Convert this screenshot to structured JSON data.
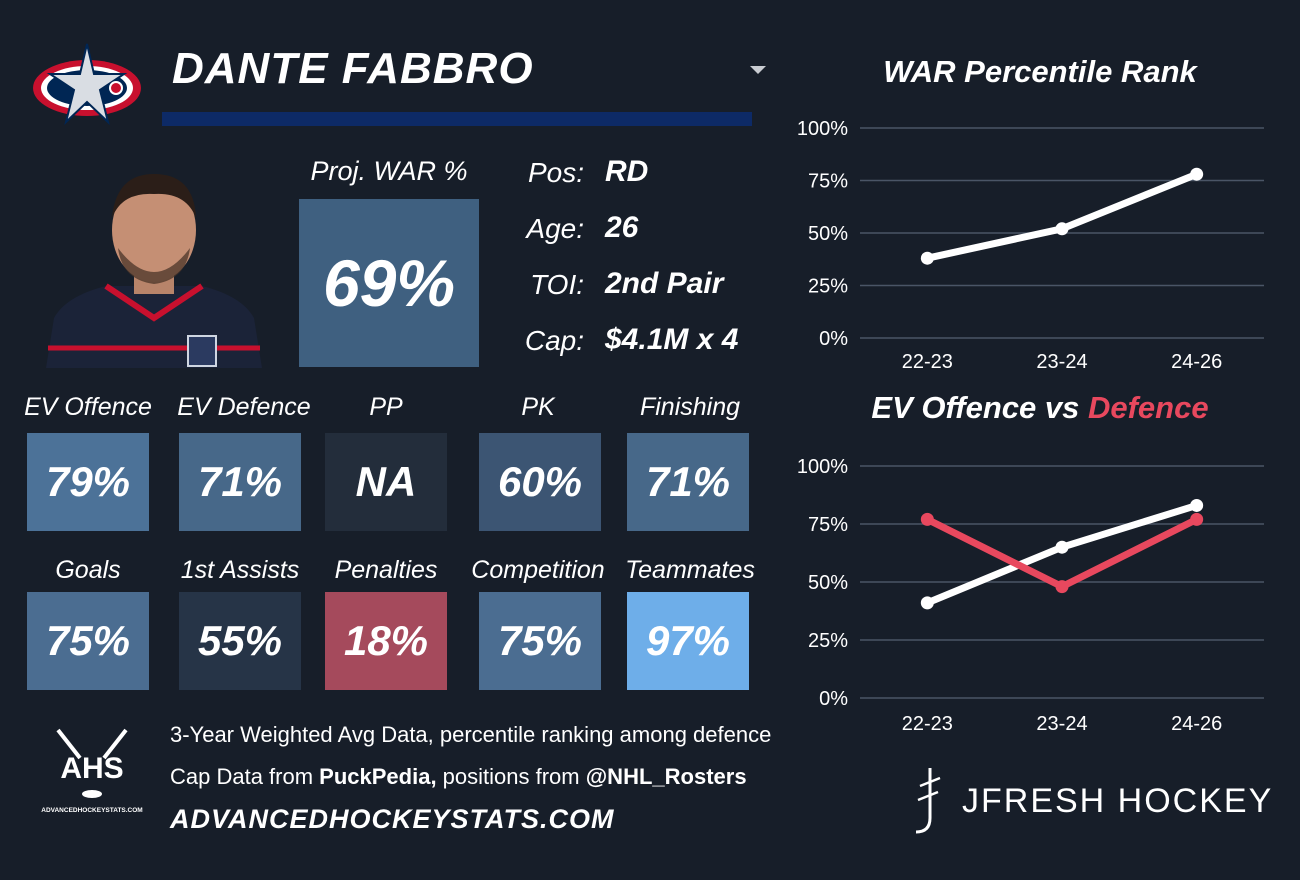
{
  "player": {
    "name": "DANTE FABBRO",
    "proj_war_label": "Proj. WAR %",
    "proj_war_value": "69%"
  },
  "info": [
    {
      "key": "Pos:",
      "value": "RD"
    },
    {
      "key": "Age:",
      "value": "26"
    },
    {
      "key": "TOI:",
      "value": "2nd Pair"
    },
    {
      "key": "Cap:",
      "value": "$4.1M x 4"
    }
  ],
  "tiles": [
    {
      "label": "EV Offence",
      "value": "79%",
      "color": "#4c7298"
    },
    {
      "label": "EV Defence",
      "value": "71%",
      "color": "#476889"
    },
    {
      "label": "PP",
      "value": "NA",
      "color": "#232d3b"
    },
    {
      "label": "PK",
      "value": "60%",
      "color": "#3c5573"
    },
    {
      "label": "Finishing",
      "value": "71%",
      "color": "#476889"
    },
    {
      "label": "Goals",
      "value": "75%",
      "color": "#4b6d91"
    },
    {
      "label": "1st Assists",
      "value": "55%",
      "color": "#263447"
    },
    {
      "label": "Penalties",
      "value": "18%",
      "color": "#a54a5c"
    },
    {
      "label": "Competition",
      "value": "75%",
      "color": "#4b6d91"
    },
    {
      "label": "Teammates",
      "value": "97%",
      "color": "#6eaee9"
    }
  ],
  "footer": {
    "line1": "3-Year Weighted Avg Data, percentile ranking among defence",
    "line2_pre": "Cap Data from ",
    "line2_b1": "PuckPedia,",
    "line2_mid": " positions from ",
    "line2_b2": "@NHL_Rosters",
    "url": "ADVANCEDHOCKEYSTATS.COM",
    "ahs_logo_text": "AHS",
    "ahs_logo_sub": "ADVANCEDHOCKEYSTATS.COM",
    "brand": "JFRESH HOCKEY"
  },
  "chart_titles": {
    "war": "WAR Percentile Rank",
    "ev_part1": "EV Offence vs ",
    "ev_part2": "Defence"
  },
  "colors": {
    "background": "#171e29",
    "white_line": "#ffffff",
    "defence_line": "#e8485e",
    "grid": "#4a5566",
    "name_bar": "#0d2a66"
  },
  "chart_data": [
    {
      "type": "line",
      "title": "WAR Percentile Rank",
      "categories": [
        "22-23",
        "23-24",
        "24-26"
      ],
      "series": [
        {
          "values": [
            38,
            52,
            78
          ],
          "color": "#ffffff"
        }
      ],
      "ylim": [
        0,
        100
      ],
      "yticks": [
        "0%",
        "25%",
        "50%",
        "75%",
        "100%"
      ],
      "grid": true
    },
    {
      "type": "line",
      "title": "EV Offence vs Defence",
      "categories": [
        "22-23",
        "23-24",
        "24-26"
      ],
      "series": [
        {
          "name": "EV Offence",
          "values": [
            41,
            65,
            83
          ],
          "color": "#ffffff"
        },
        {
          "name": "Defence",
          "values": [
            77,
            48,
            77
          ],
          "color": "#e8485e"
        }
      ],
      "ylim": [
        0,
        100
      ],
      "yticks": [
        "0%",
        "25%",
        "50%",
        "75%",
        "100%"
      ],
      "grid": true
    }
  ]
}
